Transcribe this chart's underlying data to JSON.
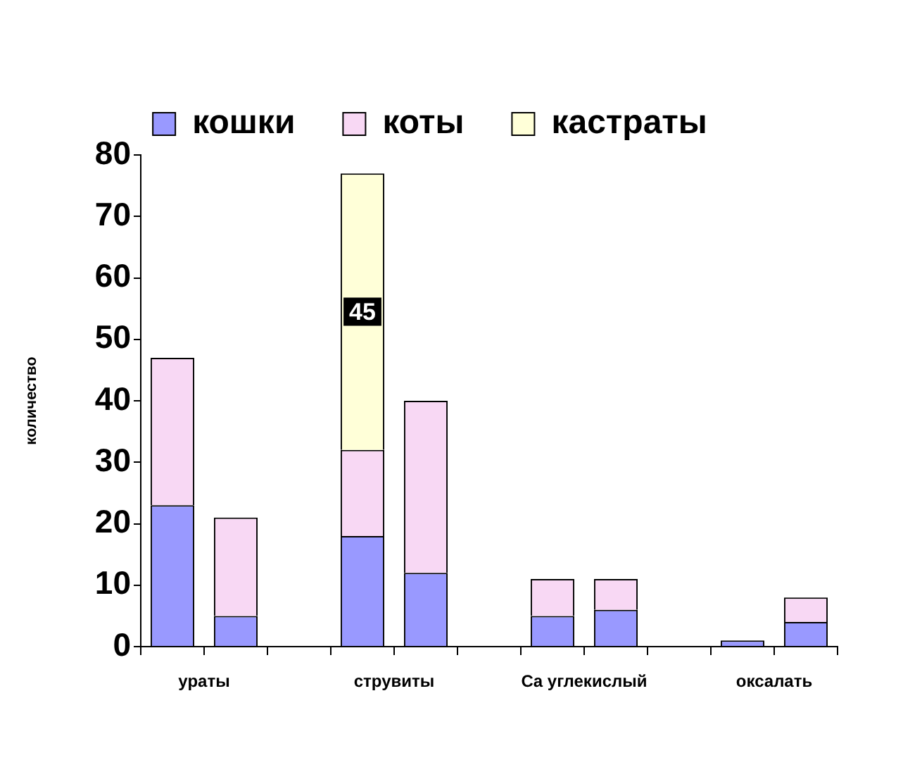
{
  "chart_data": {
    "type": "bar",
    "stacked": true,
    "categories": [
      "ураты",
      null,
      null,
      "струвиты",
      null,
      null,
      "Ca углекислый",
      null,
      null,
      "оксалать",
      null
    ],
    "series": [
      {
        "name": "кошки",
        "color": "#9999ff",
        "values": [
          23,
          5,
          null,
          18,
          12,
          null,
          5,
          6,
          null,
          1,
          4
        ]
      },
      {
        "name": "коты",
        "color": "#f8d8f4",
        "values": [
          24,
          16,
          null,
          14,
          28,
          null,
          6,
          5,
          null,
          null,
          4
        ]
      },
      {
        "name": "кастраты",
        "color": "#ffffd8",
        "values": [
          null,
          null,
          null,
          45,
          null,
          null,
          null,
          null,
          null,
          null,
          null
        ],
        "value_labels": [
          null,
          null,
          null,
          "45",
          null,
          null,
          null,
          null,
          null,
          null,
          null
        ]
      }
    ],
    "ylabel": "количество",
    "ylim": [
      0,
      80
    ],
    "yticks": [
      0,
      10,
      20,
      30,
      40,
      50,
      60,
      70,
      80
    ],
    "grid": false,
    "legend": "top"
  }
}
